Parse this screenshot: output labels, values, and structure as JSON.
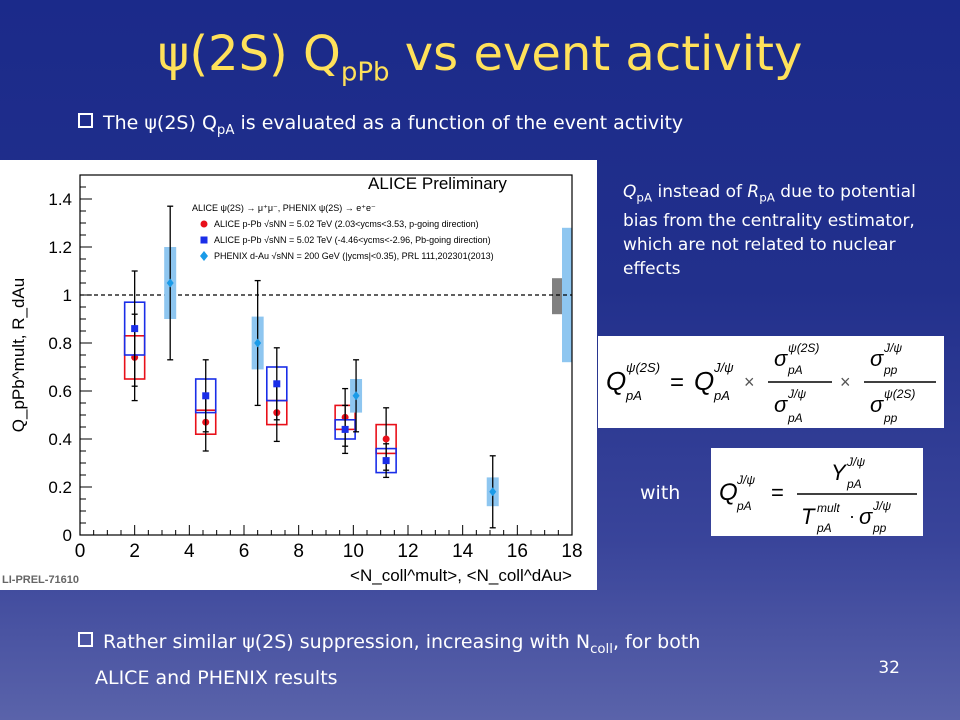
{
  "slide": {
    "title_main": "ψ(2S) Q",
    "title_sub": "pPb",
    "title_tail": " vs event activity",
    "bullet1_pre": "The ",
    "bullet1_psi": "ψ(2S) Q",
    "bullet1_sub": "pA",
    "bullet1_post": " is evaluated as a function of the event activity",
    "note_q": "Q",
    "note_qsub": "pA",
    "note_mid": " instead of ",
    "note_r": "R",
    "note_rsub": "pA",
    "note_rest": " due to potential bias from the centrality estimator, which are not related to nuclear effects",
    "with_label": "with",
    "bullet2_line1_pre": "Rather similar ψ(2S) suppression, increasing with N",
    "bullet2_line1_sub": "coll",
    "bullet2_line1_post": ", for both",
    "bullet2_line2": "ALICE and PHENIX results",
    "page_number": "32",
    "colors": {
      "title": "#ffe15a",
      "alice_pgoing": "#e8101a",
      "alice_pbgoing": "#1a2ee8",
      "phenix": "#1a9be8"
    }
  },
  "chart_data": {
    "type": "scatter",
    "title": "ALICE Preliminary",
    "watermark": "LI-PREL-71610",
    "ylabel": "Q_pPb^mult, R_dAu",
    "xlabel": "<N_coll^mult>, <N_coll^dAu>",
    "xlim": [
      0,
      18
    ],
    "ylim": [
      0,
      1.5
    ],
    "x_ticks": [
      "0",
      "2",
      "4",
      "6",
      "8",
      "10",
      "12",
      "14",
      "16",
      "18"
    ],
    "y_ticks": [
      "0",
      "0.2",
      "0.4",
      "0.6",
      "0.8",
      "1",
      "1.2",
      "1.4"
    ],
    "reference_line": 1.0,
    "legend_header": "ALICE ψ(2S) → μ⁺μ⁻, PHENIX ψ(2S) → e⁺e⁻",
    "series": [
      {
        "name": "ALICE p-Pb √sNN = 5.02 TeV (2.03<ycms<3.53, p-going direction)",
        "marker": "circle",
        "color": "#e8101a",
        "points": [
          {
            "x": 2.0,
            "y": 0.74,
            "stat": 0.18,
            "sys": 0.09
          },
          {
            "x": 4.6,
            "y": 0.47,
            "stat": 0.12,
            "sys": 0.05
          },
          {
            "x": 7.2,
            "y": 0.51,
            "stat": 0.12,
            "sys": 0.05
          },
          {
            "x": 9.7,
            "y": 0.49,
            "stat": 0.12,
            "sys": 0.05
          },
          {
            "x": 11.2,
            "y": 0.4,
            "stat": 0.13,
            "sys": 0.06
          }
        ]
      },
      {
        "name": "ALICE p-Pb √sNN = 5.02 TeV (-4.46<ycms<-2.96, Pb-going direction)",
        "marker": "square",
        "color": "#1a2ee8",
        "points": [
          {
            "x": 2.0,
            "y": 0.86,
            "stat": 0.24,
            "sys": 0.11
          },
          {
            "x": 4.6,
            "y": 0.58,
            "stat": 0.15,
            "sys": 0.07
          },
          {
            "x": 7.2,
            "y": 0.63,
            "stat": 0.15,
            "sys": 0.07
          },
          {
            "x": 9.7,
            "y": 0.44,
            "stat": 0.1,
            "sys": 0.04
          },
          {
            "x": 11.2,
            "y": 0.31,
            "stat": 0.07,
            "sys": 0.05
          }
        ]
      },
      {
        "name": "PHENIX d-Au √sNN = 200 GeV (|ycms|<0.35), PRL 111,202301(2013)",
        "marker": "diamond",
        "color": "#1a9be8",
        "points": [
          {
            "x": 3.3,
            "y": 1.05,
            "stat": 0.32,
            "sys": 0.15
          },
          {
            "x": 6.5,
            "y": 0.8,
            "stat": 0.26,
            "sys": 0.11
          },
          {
            "x": 10.1,
            "y": 0.58,
            "stat": 0.15,
            "sys": 0.07
          },
          {
            "x": 15.1,
            "y": 0.18,
            "stat": 0.15,
            "sys": 0.06
          }
        ]
      }
    ],
    "global_uncertainties": [
      {
        "y_low": 0.92,
        "y_high": 1.07,
        "color": "#808080"
      },
      {
        "y_low": 0.72,
        "y_high": 1.28,
        "color": "#8ec6f0"
      }
    ]
  }
}
